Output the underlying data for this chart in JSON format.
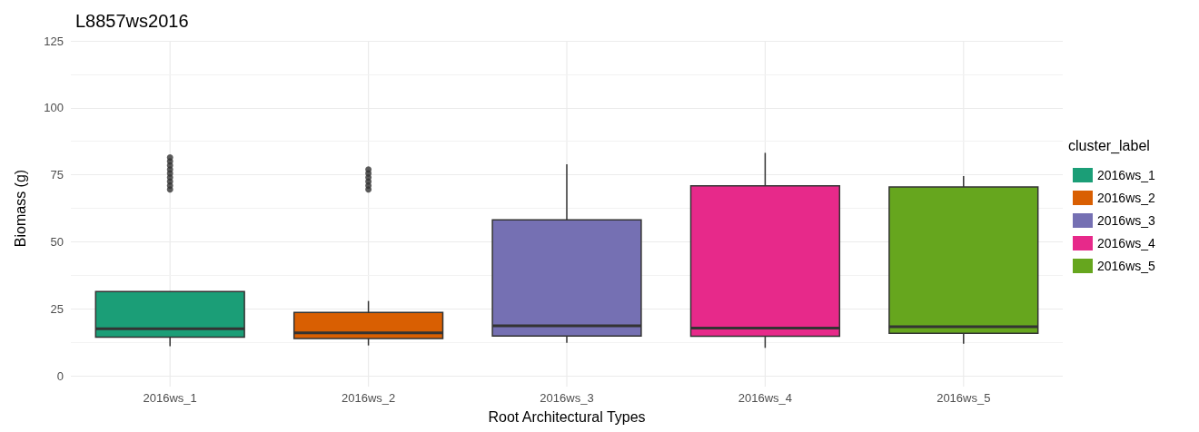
{
  "chart_data": {
    "type": "box",
    "title": "L8857ws2016",
    "xlabel": "Root Architectural Types",
    "ylabel": "Biomass (g)",
    "legend_title": "cluster_label",
    "categories": [
      "2016ws_1",
      "2016ws_2",
      "2016ws_3",
      "2016ws_4",
      "2016ws_5"
    ],
    "series": [
      {
        "name": "2016ws_1",
        "color": "#1b9e77",
        "boxes": [
          {
            "low": 11.0,
            "q1": 14.4,
            "median": 17.5,
            "q3": 31.4,
            "high": 31.4,
            "outliers": [
              69.5,
              71,
              72.5,
              74,
              75.5,
              77,
              78.5,
              80,
              81.5
            ]
          },
          null,
          null,
          null,
          null
        ]
      },
      {
        "name": "2016ws_2",
        "color": "#d95f02",
        "boxes": [
          null,
          {
            "low": 11.3,
            "q1": 13.9,
            "median": 16.0,
            "q3": 23.6,
            "high": 27.9,
            "outliers": [
              69.5,
              71,
              72.5,
              74,
              75.5,
              77
            ]
          },
          null,
          null,
          null
        ]
      },
      {
        "name": "2016ws_3",
        "color": "#7570b3",
        "boxes": [
          null,
          null,
          {
            "low": 12.3,
            "q1": 14.8,
            "median": 18.6,
            "q3": 58.2,
            "high": 78.9
          },
          null,
          null
        ]
      },
      {
        "name": "2016ws_4",
        "color": "#e7298a",
        "boxes": [
          null,
          null,
          null,
          {
            "low": 10.4,
            "q1": 14.7,
            "median": 17.8,
            "q3": 70.9,
            "high": 83.2
          },
          null
        ]
      },
      {
        "name": "2016ws_5",
        "color": "#66a61e",
        "boxes": [
          null,
          null,
          null,
          null,
          {
            "low": 11.9,
            "q1": 15.8,
            "median": 18.3,
            "q3": 70.5,
            "high": 74.5
          }
        ]
      }
    ],
    "ylim": [
      0,
      125
    ],
    "yticks": [
      0,
      25,
      50,
      75,
      100,
      125
    ],
    "grid": true,
    "legend": "right"
  }
}
